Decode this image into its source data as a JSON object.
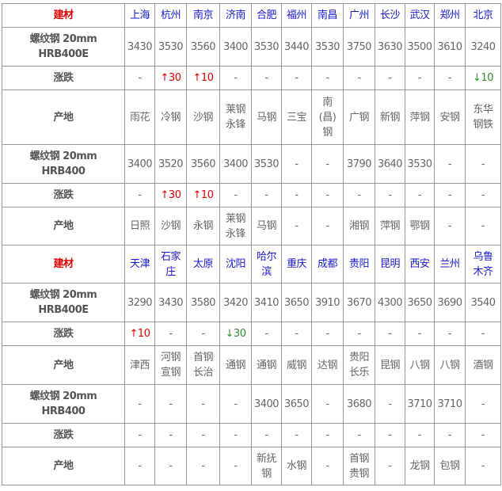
{
  "colors": {
    "header_label": "#e00000",
    "city": "#1a1acc",
    "up": "#e00000",
    "down": "#2f8f2f"
  },
  "sections": [
    {
      "header_label": "建材",
      "cities": [
        "上海",
        "杭州",
        "南京",
        "济南",
        "合肥",
        "福州",
        "南昌",
        "广州",
        "长沙",
        "武汉",
        "郑州",
        "北京"
      ],
      "rows": [
        {
          "label": "螺纹钢 20mm\nHRB400E",
          "values": [
            "3430",
            "3530",
            "3560",
            "3400",
            "3530",
            "3440",
            "3530",
            "3750",
            "3630",
            "3500",
            "3610",
            "3240"
          ]
        },
        {
          "label": "涨跌",
          "values": [
            "-",
            "↑30",
            "↑10",
            "-",
            "-",
            "-",
            "-",
            "-",
            "-",
            "-",
            "-",
            "↓10"
          ]
        },
        {
          "label": "产地",
          "values": [
            "雨花",
            "冷钢",
            "沙钢",
            "莱钢\n永锋",
            "马钢",
            "三宝",
            "南\n(昌)\n钢",
            "广钢",
            "新钢",
            "萍钢",
            "安钢",
            "东华\n钢铁"
          ]
        },
        {
          "label": "螺纹钢 20mm\nHRB400",
          "values": [
            "3400",
            "3520",
            "3560",
            "3400",
            "3530",
            "-",
            "-",
            "3790",
            "3640",
            "3530",
            "-",
            "-"
          ]
        },
        {
          "label": "涨跌",
          "values": [
            "-",
            "↑30",
            "↑10",
            "-",
            "-",
            "-",
            "-",
            "-",
            "-",
            "-",
            "-",
            "-"
          ]
        },
        {
          "label": "产地",
          "values": [
            "日照",
            "沙钢",
            "永钢",
            "莱钢\n永锋",
            "马钢",
            "-",
            "-",
            "湘钢",
            "萍钢",
            "鄂钢",
            "-",
            "-"
          ]
        }
      ]
    },
    {
      "header_label": "建材",
      "cities": [
        "天津",
        "石家\n庄",
        "太原",
        "沈阳",
        "哈尔\n滨",
        "重庆",
        "成都",
        "贵阳",
        "昆明",
        "西安",
        "兰州",
        "乌鲁\n木齐"
      ],
      "rows": [
        {
          "label": "螺纹钢 20mm\nHRB400E",
          "values": [
            "3290",
            "3430",
            "3580",
            "3420",
            "3410",
            "3650",
            "3910",
            "3670",
            "4300",
            "3650",
            "3690",
            "3540"
          ]
        },
        {
          "label": "涨跌",
          "values": [
            "↑10",
            "-",
            "-",
            "↓30",
            "-",
            "-",
            "-",
            "-",
            "-",
            "-",
            "-",
            "-"
          ]
        },
        {
          "label": "产地",
          "values": [
            "津西",
            "河钢\n宣钢",
            "首钢\n长治",
            "通钢",
            "通钢",
            "威钢",
            "达钢",
            "贵阳\n长乐",
            "昆钢",
            "八钢",
            "八钢",
            "酒钢"
          ]
        },
        {
          "label": "螺纹钢 20mm\nHRB400",
          "values": [
            "-",
            "-",
            "-",
            "-",
            "3400",
            "3650",
            "-",
            "3680",
            "-",
            "3710",
            "3710",
            "-"
          ]
        },
        {
          "label": "涨跌",
          "values": [
            "-",
            "-",
            "-",
            "-",
            "-",
            "-",
            "-",
            "-",
            "-",
            "-",
            "-",
            "-"
          ]
        },
        {
          "label": "产地",
          "values": [
            "-",
            "-",
            "-",
            "-",
            "新抚\n钢",
            "水钢",
            "-",
            "首钢\n贵钢",
            "-",
            "龙钢",
            "包钢",
            "-"
          ]
        }
      ]
    }
  ]
}
